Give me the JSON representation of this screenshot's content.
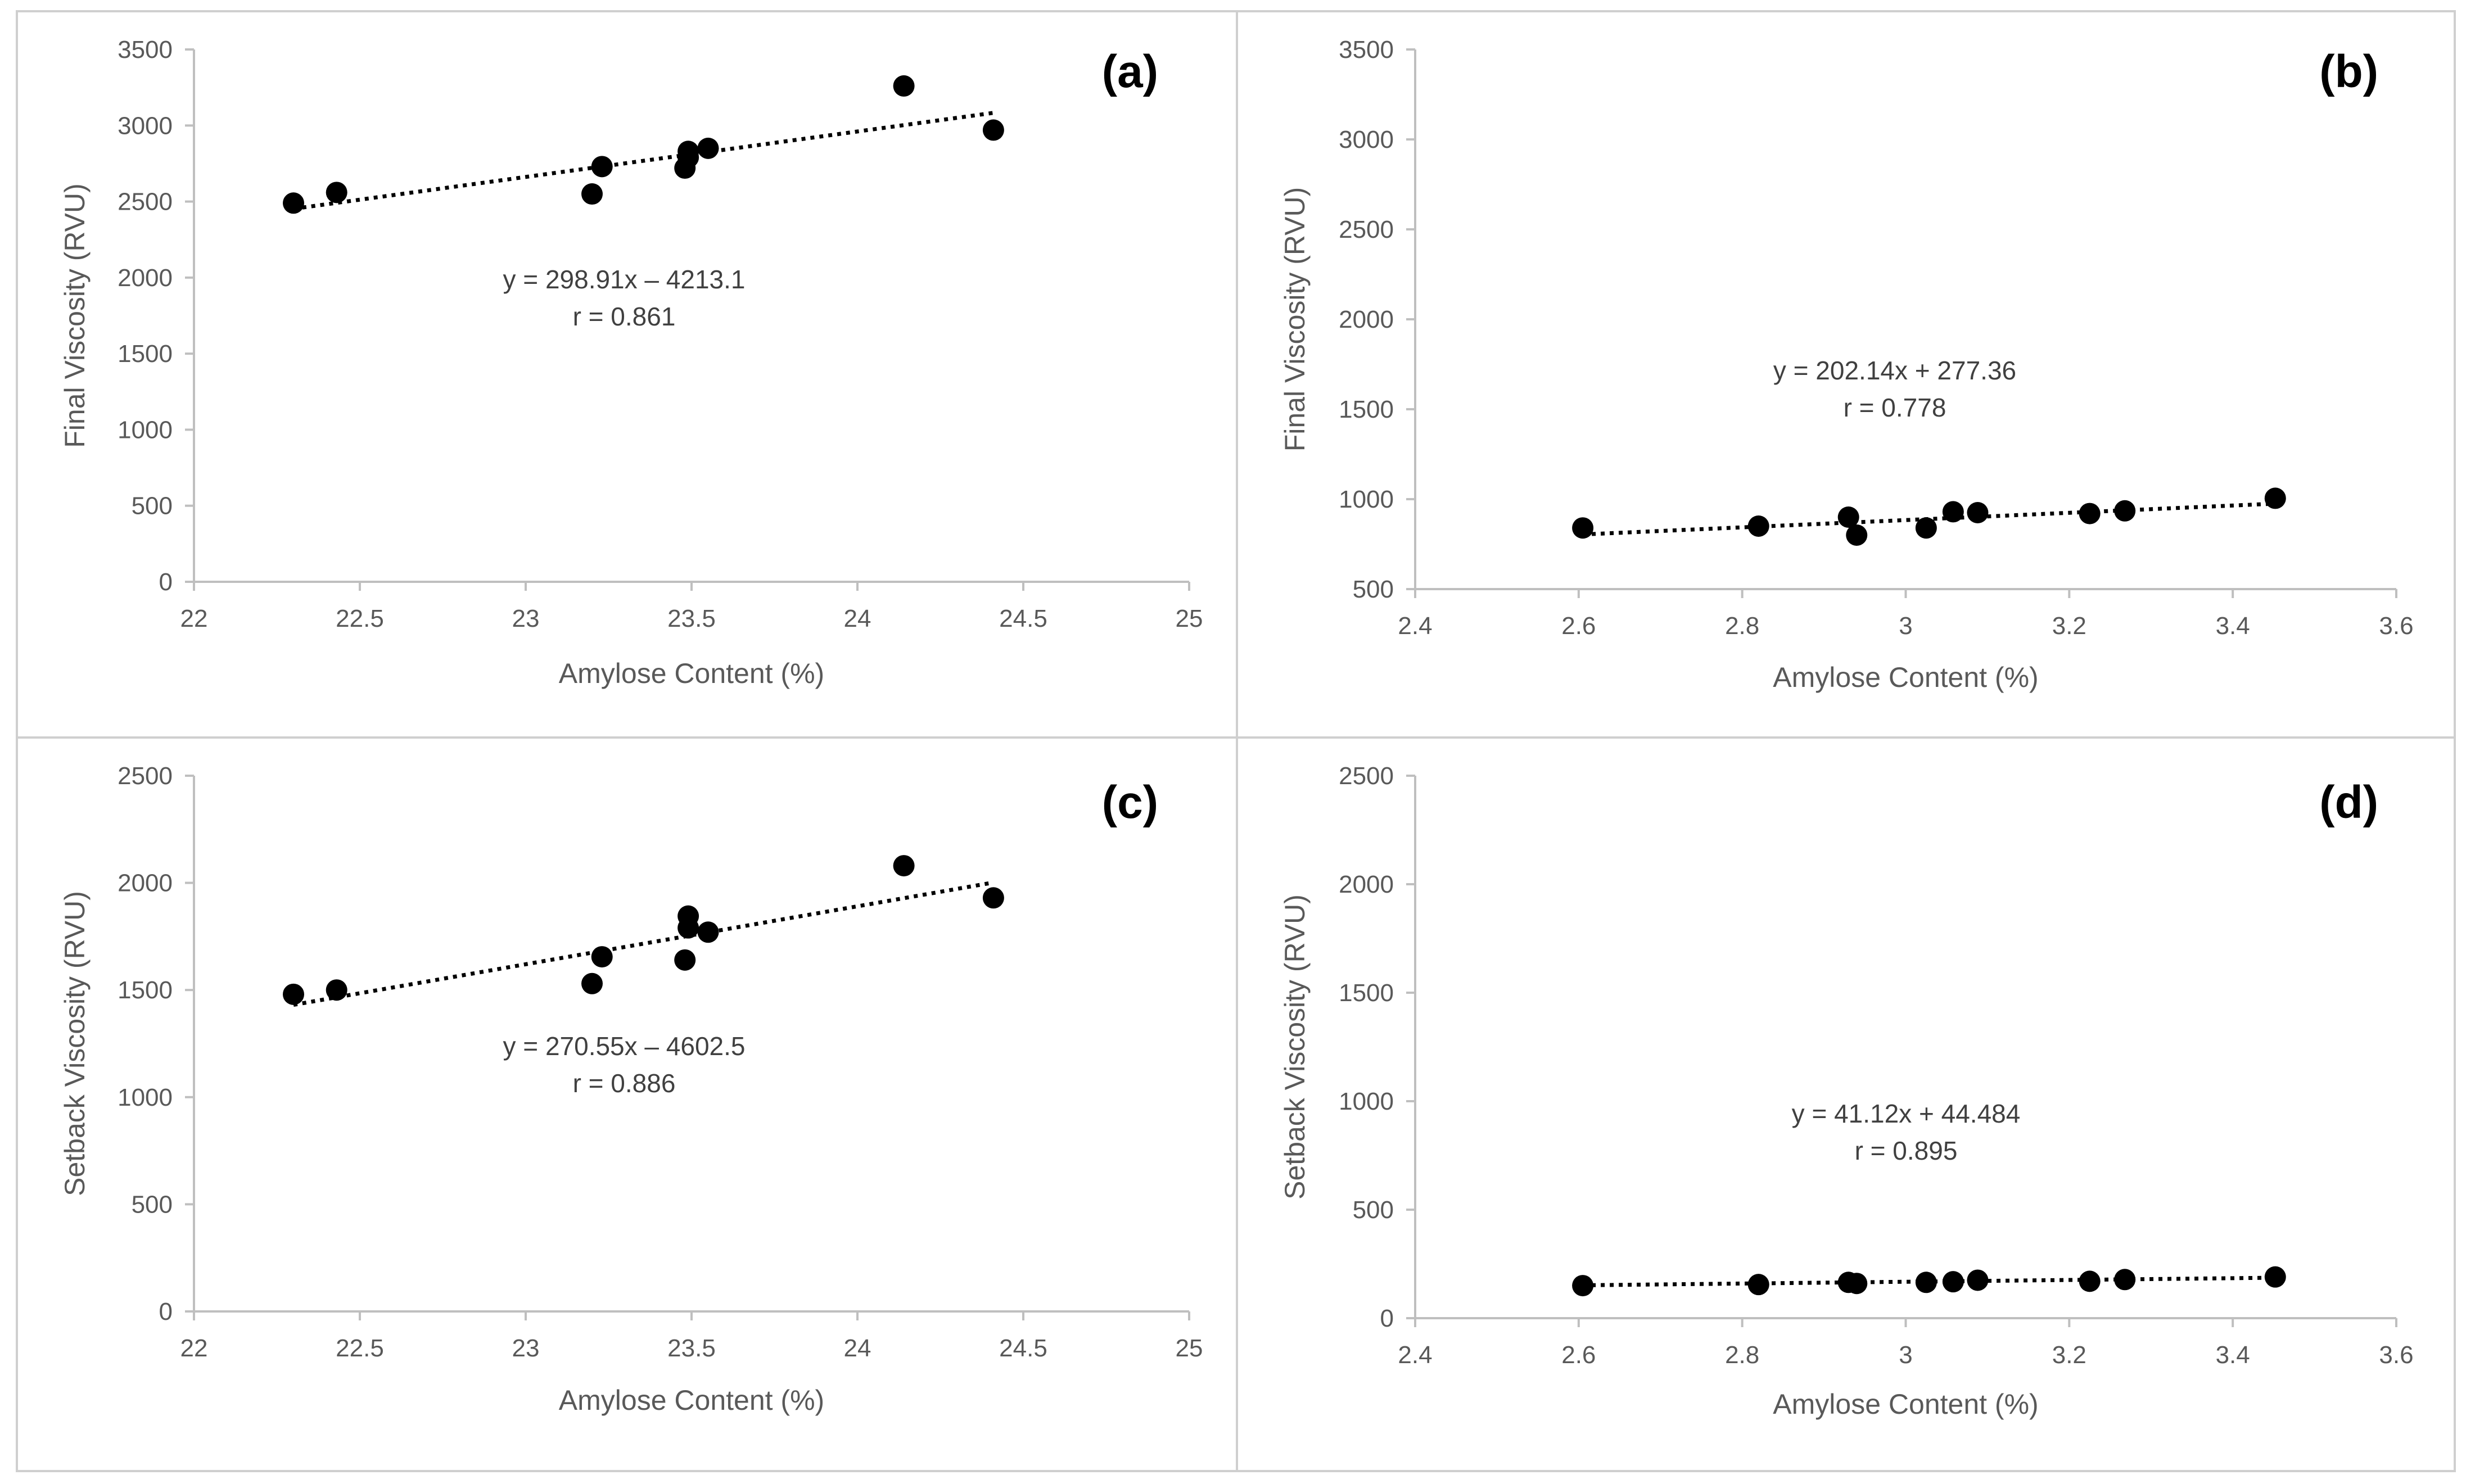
{
  "figure": {
    "type": "scatter-grid",
    "layout": "2x2"
  },
  "chart_data": [
    {
      "type": "scatter",
      "panel": "(a)",
      "xlabel": "Amylose Content (%)",
      "ylabel": "Final Viscosity (RVU)",
      "xlim": [
        22,
        25
      ],
      "ylim": [
        0,
        3500
      ],
      "xticks": [
        22,
        22.5,
        23,
        23.5,
        24,
        24.5,
        25
      ],
      "xtick_labels": [
        "22",
        "22.5",
        "23",
        "23.5",
        "24",
        "24.5",
        "25"
      ],
      "yticks": [
        0,
        500,
        1000,
        1500,
        2000,
        2500,
        3000,
        3500
      ],
      "ytick_labels": [
        "0",
        "500",
        "1000",
        "1500",
        "2000",
        "2500",
        "3000",
        "3500"
      ],
      "x": [
        22.3,
        22.43,
        23.2,
        23.23,
        23.48,
        23.49,
        23.49,
        23.55,
        24.14,
        24.41
      ],
      "y": [
        2490,
        2560,
        2550,
        2730,
        2720,
        2790,
        2830,
        2850,
        3260,
        2970
      ],
      "trendline": {
        "slope": 298.91,
        "intercept": -4213.1,
        "x_range": [
          22.3,
          24.41
        ]
      },
      "equation": "y = 298.91x – 4213.1",
      "r_text": "r = 0.861"
    },
    {
      "type": "scatter",
      "panel": "(b)",
      "xlabel": "Amylose Content (%)",
      "ylabel": "Final Viscosity (RVU)",
      "xlim": [
        2.4,
        3.6
      ],
      "ylim": [
        500,
        3500
      ],
      "xticks": [
        2.4,
        2.6,
        2.8,
        3.0,
        3.2,
        3.4,
        3.6
      ],
      "xtick_labels": [
        "2.4",
        "2.6",
        "2.8",
        "3",
        "3.2",
        "3.4",
        "3.6"
      ],
      "yticks": [
        500,
        1000,
        1500,
        2000,
        2500,
        3000,
        3500
      ],
      "ytick_labels": [
        "500",
        "1000",
        "1500",
        "2000",
        "2500",
        "3000",
        "3500"
      ],
      "x": [
        2.605,
        2.82,
        2.93,
        2.94,
        3.025,
        3.058,
        3.088,
        3.225,
        3.268,
        3.452
      ],
      "y": [
        840,
        850,
        900,
        800,
        840,
        930,
        925,
        920,
        935,
        1005
      ],
      "trendline": {
        "slope": 202.14,
        "intercept": 277.36,
        "x_range": [
          2.605,
          3.452
        ]
      },
      "equation": "y = 202.14x + 277.36",
      "r_text": "r = 0.778"
    },
    {
      "type": "scatter",
      "panel": "(c)",
      "xlabel": "Amylose Content (%)",
      "ylabel": "Setback Viscosity (RVU)",
      "xlim": [
        22,
        25
      ],
      "ylim": [
        0,
        2500
      ],
      "xticks": [
        22,
        22.5,
        23,
        23.5,
        24,
        24.5,
        25
      ],
      "xtick_labels": [
        "22",
        "22.5",
        "23",
        "23.5",
        "24",
        "24.5",
        "25"
      ],
      "yticks": [
        0,
        500,
        1000,
        1500,
        2000,
        2500
      ],
      "ytick_labels": [
        "0",
        "500",
        "1000",
        "1500",
        "2000",
        "2500"
      ],
      "x": [
        22.3,
        22.43,
        23.2,
        23.23,
        23.48,
        23.49,
        23.49,
        23.55,
        24.14,
        24.41
      ],
      "y": [
        1480,
        1500,
        1530,
        1655,
        1640,
        1790,
        1845,
        1770,
        2080,
        1930
      ],
      "trendline": {
        "slope": 270.55,
        "intercept": -4602.5,
        "x_range": [
          22.3,
          24.41
        ]
      },
      "equation": "y = 270.55x – 4602.5",
      "r_text": "r = 0.886"
    },
    {
      "type": "scatter",
      "panel": "(d)",
      "xlabel": "Amylose Content (%)",
      "ylabel": "Setback Viscosity (RVU)",
      "xlim": [
        2.4,
        3.6
      ],
      "ylim": [
        0,
        2500
      ],
      "xticks": [
        2.4,
        2.6,
        2.8,
        3.0,
        3.2,
        3.4,
        3.6
      ],
      "xtick_labels": [
        "2.4",
        "2.6",
        "2.8",
        "3",
        "3.2",
        "3.4",
        "3.6"
      ],
      "yticks": [
        0,
        500,
        1000,
        1500,
        2000,
        2500
      ],
      "ytick_labels": [
        "0",
        "500",
        "1000",
        "1500",
        "2000",
        "2500"
      ],
      "x": [
        2.605,
        2.82,
        2.93,
        2.94,
        3.025,
        3.058,
        3.088,
        3.225,
        3.268,
        3.452
      ],
      "y": [
        150,
        155,
        165,
        160,
        165,
        168,
        175,
        170,
        178,
        190
      ],
      "trendline": {
        "slope": 41.12,
        "intercept": 44.484,
        "x_range": [
          2.605,
          3.452
        ]
      },
      "equation": "y = 41.12x + 44.484",
      "r_text": "r = 0.895"
    }
  ]
}
